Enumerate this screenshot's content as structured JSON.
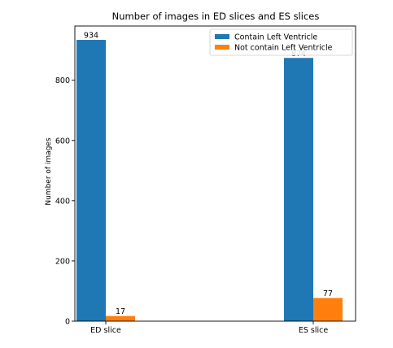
{
  "chart_data": {
    "type": "bar",
    "title": "Number of images in ED slices and ES slices",
    "xlabel": "",
    "ylabel": "Number of images",
    "categories": [
      "ED slice",
      "ES slice"
    ],
    "series": [
      {
        "name": "Contain Left Ventricle",
        "values": [
          934,
          874
        ],
        "color": "#1f77b4"
      },
      {
        "name": "Not contain Left Ventricle",
        "values": [
          17,
          77
        ],
        "color": "#ff7f0e"
      }
    ],
    "ylim": [
      0,
      980
    ],
    "yticks": [
      0,
      200,
      400,
      600,
      800
    ],
    "grid": false,
    "legend_position": "top-right"
  }
}
